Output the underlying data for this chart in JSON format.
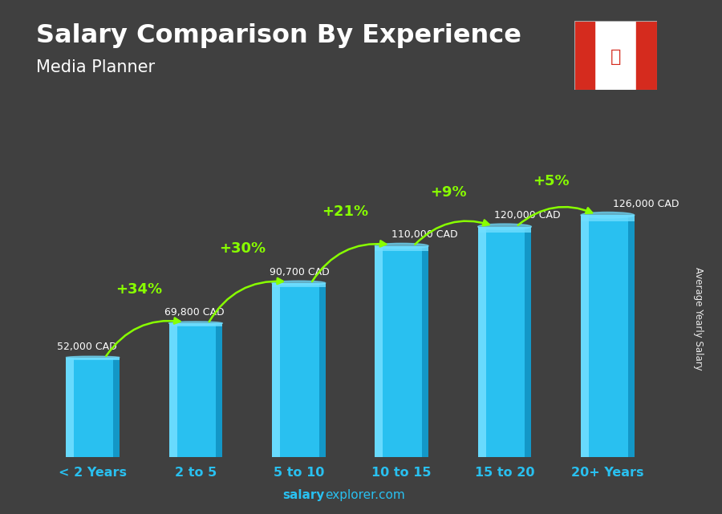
{
  "title": "Salary Comparison By Experience",
  "subtitle": "Media Planner",
  "categories": [
    "< 2 Years",
    "2 to 5",
    "5 to 10",
    "10 to 15",
    "15 to 20",
    "20+ Years"
  ],
  "values": [
    52000,
    69800,
    90700,
    110000,
    120000,
    126000
  ],
  "value_labels": [
    "52,000 CAD",
    "69,800 CAD",
    "90,700 CAD",
    "110,000 CAD",
    "120,000 CAD",
    "126,000 CAD"
  ],
  "pct_labels": [
    "+34%",
    "+30%",
    "+21%",
    "+9%",
    "+5%"
  ],
  "bar_color": "#29C0F0",
  "bar_color_light": "#70DEFF",
  "bar_color_dark": "#1090C0",
  "bar_color_side": "#1aaad4",
  "bg_color": "#3a3a3a",
  "title_color": "#FFFFFF",
  "subtitle_color": "#FFFFFF",
  "xlabel_color": "#29C0F0",
  "value_label_color": "#FFFFFF",
  "pct_color": "#88FF00",
  "arrow_color": "#88FF00",
  "footer_bold": "salary",
  "footer_regular": "explorer.com",
  "footer_color": "#29C0F0",
  "ylabel_text": "Average Yearly Salary",
  "ylim": [
    0,
    155000
  ],
  "figsize": [
    9.0,
    6.41
  ],
  "bar_width": 0.52
}
